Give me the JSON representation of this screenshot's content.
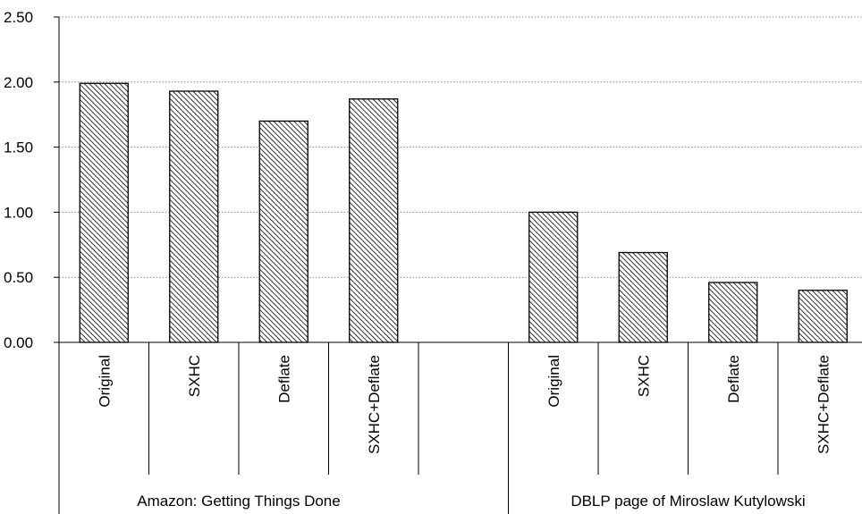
{
  "chart_data": {
    "type": "bar",
    "groups": [
      {
        "label": "Amazon: Getting Things Done",
        "categories": [
          "Original",
          "SXHC",
          "Deflate",
          "SXHC+Deflate"
        ],
        "values": [
          1.99,
          1.93,
          1.7,
          1.87
        ]
      },
      {
        "label": "DBLP page of Miroslaw Kutylowski",
        "categories": [
          "Original",
          "SXHC",
          "Deflate",
          "SXHC+Deflate"
        ],
        "values": [
          1.0,
          0.69,
          0.46,
          0.4
        ]
      }
    ],
    "yticks": [
      "0.00",
      "0.50",
      "1.00",
      "1.50",
      "2.00",
      "2.50"
    ],
    "ylim": [
      0,
      2.5
    ],
    "grid": true,
    "legend": "none",
    "bar_fill": "hatched",
    "colors": {
      "bar_stroke": "#000000",
      "hatch": "#000000",
      "grid": "#888888"
    }
  }
}
